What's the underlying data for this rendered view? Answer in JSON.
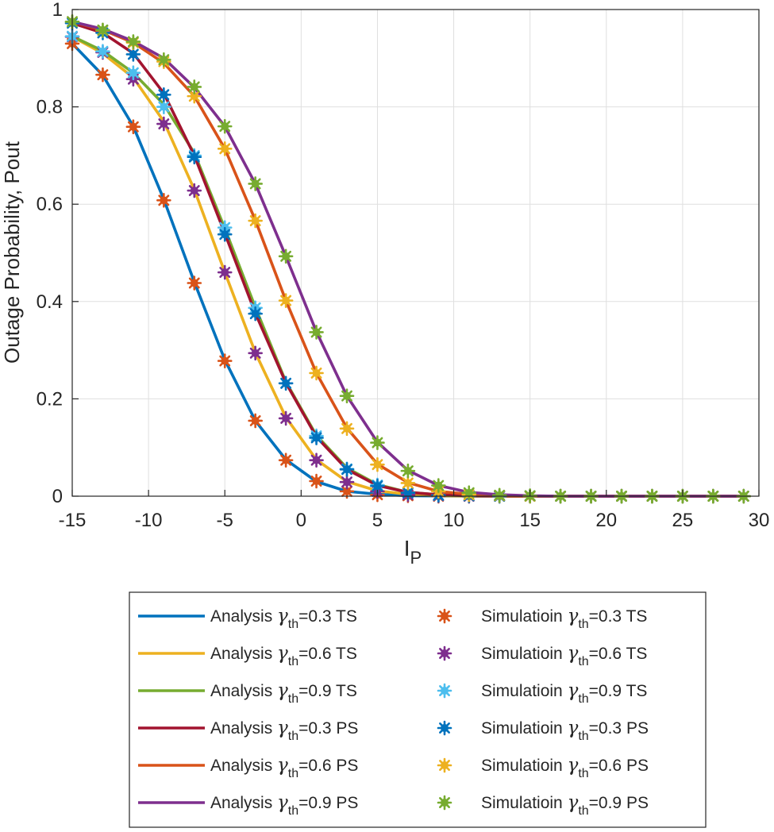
{
  "chart_data": {
    "type": "line",
    "title": "",
    "xlabel_main": "I",
    "xlabel_sub": "P",
    "ylabel": "Outage Probability, Pout",
    "xlim": [
      -15,
      30
    ],
    "ylim": [
      0,
      1
    ],
    "xticks": [
      "-15",
      "-10",
      "-5",
      "0",
      "5",
      "10",
      "15",
      "20",
      "25",
      "30"
    ],
    "yticks": [
      "0",
      "0.2",
      "0.4",
      "0.6",
      "0.8",
      "1"
    ],
    "grid": true,
    "legend_position": "bottom",
    "x": [
      -15,
      -13,
      -11,
      -9,
      -7,
      -5,
      -3,
      -1,
      1,
      3,
      5,
      7,
      9,
      11,
      13,
      15,
      17,
      19,
      21,
      23,
      25,
      27,
      29
    ],
    "series": [
      {
        "name": "Analysis γth=0.3 TS",
        "legend": {
          "prefix": "Analysis  ",
          "greek": "γ",
          "sub": "th",
          "suffix": "=0.3  TS"
        },
        "style": "line",
        "color": "#0072BD",
        "values": [
          0.93,
          0.865,
          0.76,
          0.61,
          0.44,
          0.28,
          0.155,
          0.075,
          0.03,
          0.01,
          0.004,
          0.001,
          0.0005,
          0,
          0,
          0,
          0,
          0,
          0,
          0,
          0,
          0,
          0
        ]
      },
      {
        "name": "Analysis γth=0.6 TS",
        "legend": {
          "prefix": "Analysis  ",
          "greek": "γ",
          "sub": "th",
          "suffix": "=0.6  TS"
        },
        "style": "line",
        "color": "#EDB120",
        "values": [
          0.944,
          0.91,
          0.86,
          0.77,
          0.63,
          0.46,
          0.295,
          0.162,
          0.075,
          0.03,
          0.011,
          0.004,
          0.001,
          0.0003,
          0,
          0,
          0,
          0,
          0,
          0,
          0,
          0,
          0
        ]
      },
      {
        "name": "Analysis γth=0.9 TS",
        "legend": {
          "prefix": "Analysis  ",
          "greek": "γ",
          "sub": "th",
          "suffix": "=0.9  TS"
        },
        "style": "line",
        "color": "#77AC30",
        "values": [
          0.945,
          0.915,
          0.87,
          0.805,
          0.705,
          0.55,
          0.388,
          0.235,
          0.125,
          0.058,
          0.024,
          0.008,
          0.003,
          0.001,
          0.0003,
          0,
          0,
          0,
          0,
          0,
          0,
          0,
          0
        ]
      },
      {
        "name": "Analysis γth=0.3 PS",
        "legend": {
          "prefix": "Analysis  ",
          "greek": "γ",
          "sub": "th",
          "suffix": "=0.3  PS"
        },
        "style": "line",
        "color": "#A2142F",
        "values": [
          0.972,
          0.952,
          0.91,
          0.828,
          0.7,
          0.54,
          0.376,
          0.233,
          0.122,
          0.055,
          0.022,
          0.008,
          0.003,
          0.001,
          0.0003,
          0,
          0,
          0,
          0,
          0,
          0,
          0,
          0
        ]
      },
      {
        "name": "Analysis γth=0.6 PS",
        "legend": {
          "prefix": "Analysis ",
          "greek": "γ",
          "sub": "th",
          "suffix": "=0.6  PS"
        },
        "style": "line",
        "color": "#D95319",
        "values": [
          0.975,
          0.958,
          0.932,
          0.89,
          0.822,
          0.714,
          0.567,
          0.402,
          0.253,
          0.14,
          0.066,
          0.028,
          0.01,
          0.004,
          0.001,
          0.0003,
          0,
          0,
          0,
          0,
          0,
          0,
          0
        ]
      },
      {
        "name": "Analysis γth=0.9 PS",
        "legend": {
          "prefix": "Analysis ",
          "greek": "γ",
          "sub": "th",
          "suffix": "=0.9  PS"
        },
        "style": "line",
        "color": "#7E2F8E",
        "values": [
          0.975,
          0.96,
          0.935,
          0.9,
          0.84,
          0.76,
          0.642,
          0.493,
          0.338,
          0.206,
          0.111,
          0.053,
          0.022,
          0.008,
          0.003,
          0.001,
          0,
          0,
          0,
          0,
          0,
          0,
          0
        ]
      },
      {
        "name": "Simulatioin γth=0.3 TS",
        "legend": {
          "prefix": "Simulatioin  ",
          "greek": "γ",
          "sub": "th",
          "suffix": "=0.3  TS"
        },
        "style": "marker",
        "color": "#D95319",
        "values": [
          0.93,
          0.866,
          0.759,
          0.608,
          0.438,
          0.278,
          0.155,
          0.074,
          0.031,
          0.01,
          0.003,
          0.001,
          0,
          0,
          0,
          0,
          0,
          0,
          0,
          0,
          0,
          0,
          0
        ]
      },
      {
        "name": "Simulatioin γth=0.6 TS",
        "legend": {
          "prefix": "Simulatioin  ",
          "greek": "γ",
          "sub": "th",
          "suffix": "=0.6  TS"
        },
        "style": "marker",
        "color": "#7E2F8E",
        "values": [
          0.944,
          0.912,
          0.857,
          0.765,
          0.628,
          0.46,
          0.294,
          0.16,
          0.074,
          0.029,
          0.01,
          0.003,
          0.001,
          0,
          0,
          0,
          0,
          0,
          0,
          0,
          0,
          0,
          0
        ]
      },
      {
        "name": "Simulatioin γth=0.9 TS",
        "legend": {
          "prefix": "Simulatioin  ",
          "greek": "γ",
          "sub": "th",
          "suffix": "=0.9  TS"
        },
        "style": "marker",
        "color": "#4DBEEE",
        "values": [
          0.945,
          0.914,
          0.87,
          0.8,
          0.7,
          0.552,
          0.387,
          0.232,
          0.124,
          0.056,
          0.023,
          0.007,
          0.002,
          0.001,
          0,
          0,
          0,
          0,
          0,
          0,
          0,
          0,
          0
        ]
      },
      {
        "name": "Simulatioin γth=0.3 PS",
        "legend": {
          "prefix": "Simulatioin  ",
          "greek": "γ",
          "sub": "th",
          "suffix": "=0.3  PS"
        },
        "style": "marker",
        "color": "#0072BD",
        "values": [
          0.972,
          0.952,
          0.908,
          0.825,
          0.697,
          0.538,
          0.375,
          0.232,
          0.12,
          0.055,
          0.021,
          0.007,
          0.002,
          0.001,
          0,
          0,
          0,
          0,
          0,
          0,
          0,
          0,
          0
        ]
      },
      {
        "name": "Simulatioin γth=0.6 PS",
        "legend": {
          "prefix": "Simulatioin ",
          "greek": "γ",
          "sub": "th",
          "suffix": "=0.6  PS"
        },
        "style": "marker",
        "color": "#EDB120",
        "values": [
          0.975,
          0.957,
          0.932,
          0.893,
          0.822,
          0.714,
          0.566,
          0.402,
          0.253,
          0.139,
          0.065,
          0.027,
          0.01,
          0.003,
          0.001,
          0,
          0,
          0,
          0,
          0,
          0,
          0,
          0
        ]
      },
      {
        "name": "Simulatioin γth=0.9 PS",
        "legend": {
          "prefix": "Simulatioin  ",
          "greek": "γ",
          "sub": "th",
          "suffix": "=0.9  PS"
        },
        "style": "marker",
        "color": "#77AC30",
        "values": [
          0.975,
          0.958,
          0.934,
          0.897,
          0.841,
          0.76,
          0.642,
          0.493,
          0.337,
          0.206,
          0.11,
          0.052,
          0.022,
          0.007,
          0.002,
          0.001,
          0,
          0,
          0,
          0,
          0,
          0,
          0
        ]
      }
    ]
  }
}
